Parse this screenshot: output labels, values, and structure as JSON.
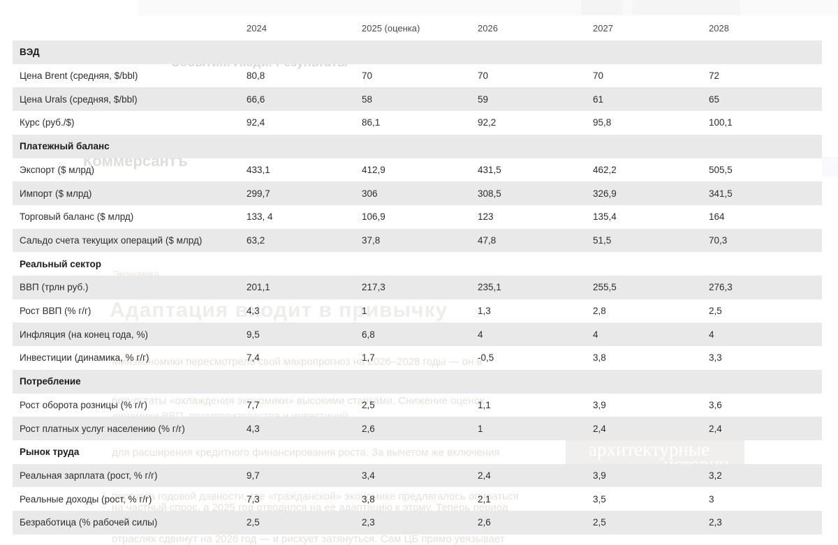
{
  "colors": {
    "row_stripe": "#e9e9e9",
    "cell_text": "#2d2d2d",
    "year_header_text": "#4a4a4a"
  },
  "chart_data": {
    "type": "table",
    "columns": [
      "",
      "2024",
      "2025 (оценка)",
      "2026",
      "2027",
      "2028"
    ],
    "sections": [
      {
        "title": "ВЭД",
        "rows": [
          {
            "label": "Цена Brent (средняя, $/bbl)",
            "values": [
              "80,8",
              "70",
              "70",
              "70",
              "72"
            ]
          },
          {
            "label": "Цена Urals (средняя, $/bbl)",
            "values": [
              "66,6",
              "58",
              "59",
              "61",
              "65"
            ]
          },
          {
            "label": "Курс (руб./$)",
            "values": [
              "92,4",
              "86,1",
              "92,2",
              "95,8",
              "100,1"
            ]
          }
        ]
      },
      {
        "title": "Платежный баланс",
        "rows": [
          {
            "label": "Экспорт ($ млрд)",
            "values": [
              "433,1",
              "412,9",
              "431,5",
              "462,2",
              "505,5"
            ]
          },
          {
            "label": "Импорт ($ млрд)",
            "values": [
              "299,7",
              "306",
              "308,5",
              "326,9",
              "341,5"
            ]
          },
          {
            "label": "Торговый баланс ($ млрд)",
            "values": [
              "133, 4",
              "106,9",
              "123",
              "135,4",
              "164"
            ]
          },
          {
            "label": "Сальдо счета текущих операций ($ млрд)",
            "values": [
              "63,2",
              "37,8",
              "47,8",
              "51,5",
              "70,3"
            ]
          }
        ]
      },
      {
        "title": "Реальный сектор",
        "rows": [
          {
            "label": "ВВП (трлн руб.)",
            "values": [
              "201,1",
              "217,3",
              "235,1",
              "255,5",
              "276,3"
            ]
          },
          {
            "label": "Рост ВВП (% г/г)",
            "values": [
              "4,3",
              "1",
              "1,3",
              "2,8",
              "2,5"
            ]
          },
          {
            "label": "Инфляция (на конец года, %)",
            "values": [
              "9,5",
              "6,8",
              "4",
              "4",
              "4"
            ]
          },
          {
            "label": "Инвестиции (динамика, % г/г)",
            "values": [
              "7,4",
              "1,7",
              "-0,5",
              "3,8",
              "3,3"
            ]
          }
        ]
      },
      {
        "title": "Потребление",
        "rows": [
          {
            "label": "Рост оборота розницы (% г/г)",
            "values": [
              "7,7",
              "2,5",
              "1,1",
              "3,9",
              "3,6"
            ]
          },
          {
            "label": "Рост платных услуг населению (% г/г)",
            "values": [
              "4,3",
              "2,6",
              "1",
              "2,4",
              "2,4"
            ]
          }
        ]
      },
      {
        "title": "Рынок труда",
        "rows": [
          {
            "label": "Реальная зарплата (рост, % г/г)",
            "values": [
              "9,7",
              "3,4",
              "2,4",
              "3,9",
              "3,2"
            ]
          },
          {
            "label": "Реальные доходы (рост, % г/г)",
            "values": [
              "7,3",
              "3,8",
              "2,1",
              "3,5",
              "3"
            ]
          },
          {
            "label": "Безработица (% рабочей силы)",
            "values": [
              "2,5",
              "2,3",
              "2,6",
              "2,5",
              "2,3"
            ]
          }
        ]
      }
    ]
  },
  "background": {
    "top_tagline": "События. Люди. Результаты",
    "masthead": "Коммерсантъ",
    "rubric": "Экономика",
    "headline": "Адаптация входит в привычку",
    "article_lines": {
      "l1": "Минэкономики пересмотрело свой макропрогноз на 2026–2028 годы — он в",
      "l2": "результаты «охлаждения экономики» высокими ставками. Снижение оценок",
      "l3": "динамики ВВП, промпроизводства и инвестиций",
      "l4": "для расширения кредитного финансирования роста. За вычетом же включения",
      "l5": "прогноза годовой давности, где «гражданской» экономике предлагалось опираться",
      "l6": "на частный спрос, а 2025 год отводился на ее адаптацию к этому. Теперь период",
      "l7": "отраслях сдвинут на 2026 год — и рискует затянуться. Сам ЦБ прямо увязывает"
    },
    "ad": {
      "line1": "архитектурные",
      "line2": "истории"
    }
  }
}
